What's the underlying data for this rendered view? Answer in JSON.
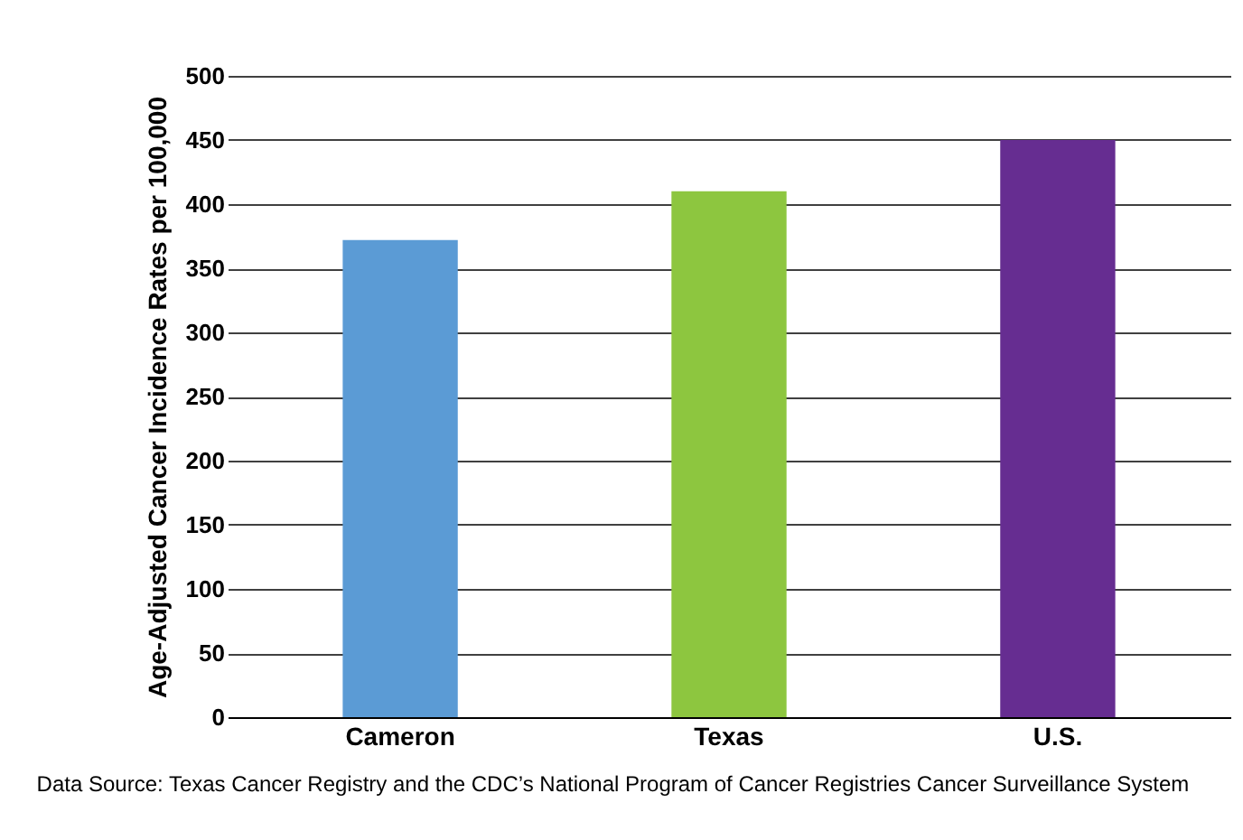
{
  "chart_data": {
    "type": "bar",
    "ylabel": "Age-Adjusted Cancer Incidence Rates per 100,000",
    "categories": [
      "Cameron",
      "Texas",
      "U.S."
    ],
    "values": [
      372,
      410,
      450
    ],
    "colors": [
      "#5b9bd5",
      "#8dc63f",
      "#662d91"
    ],
    "ylim": [
      0,
      500
    ],
    "yticks": [
      0,
      50,
      100,
      150,
      200,
      250,
      300,
      350,
      400,
      450,
      500
    ],
    "grid": "y",
    "annotations": [
      "Data Source: Texas Cancer Registry and the CDC’s National Program of Cancer Registries Cancer Surveillance System"
    ]
  }
}
